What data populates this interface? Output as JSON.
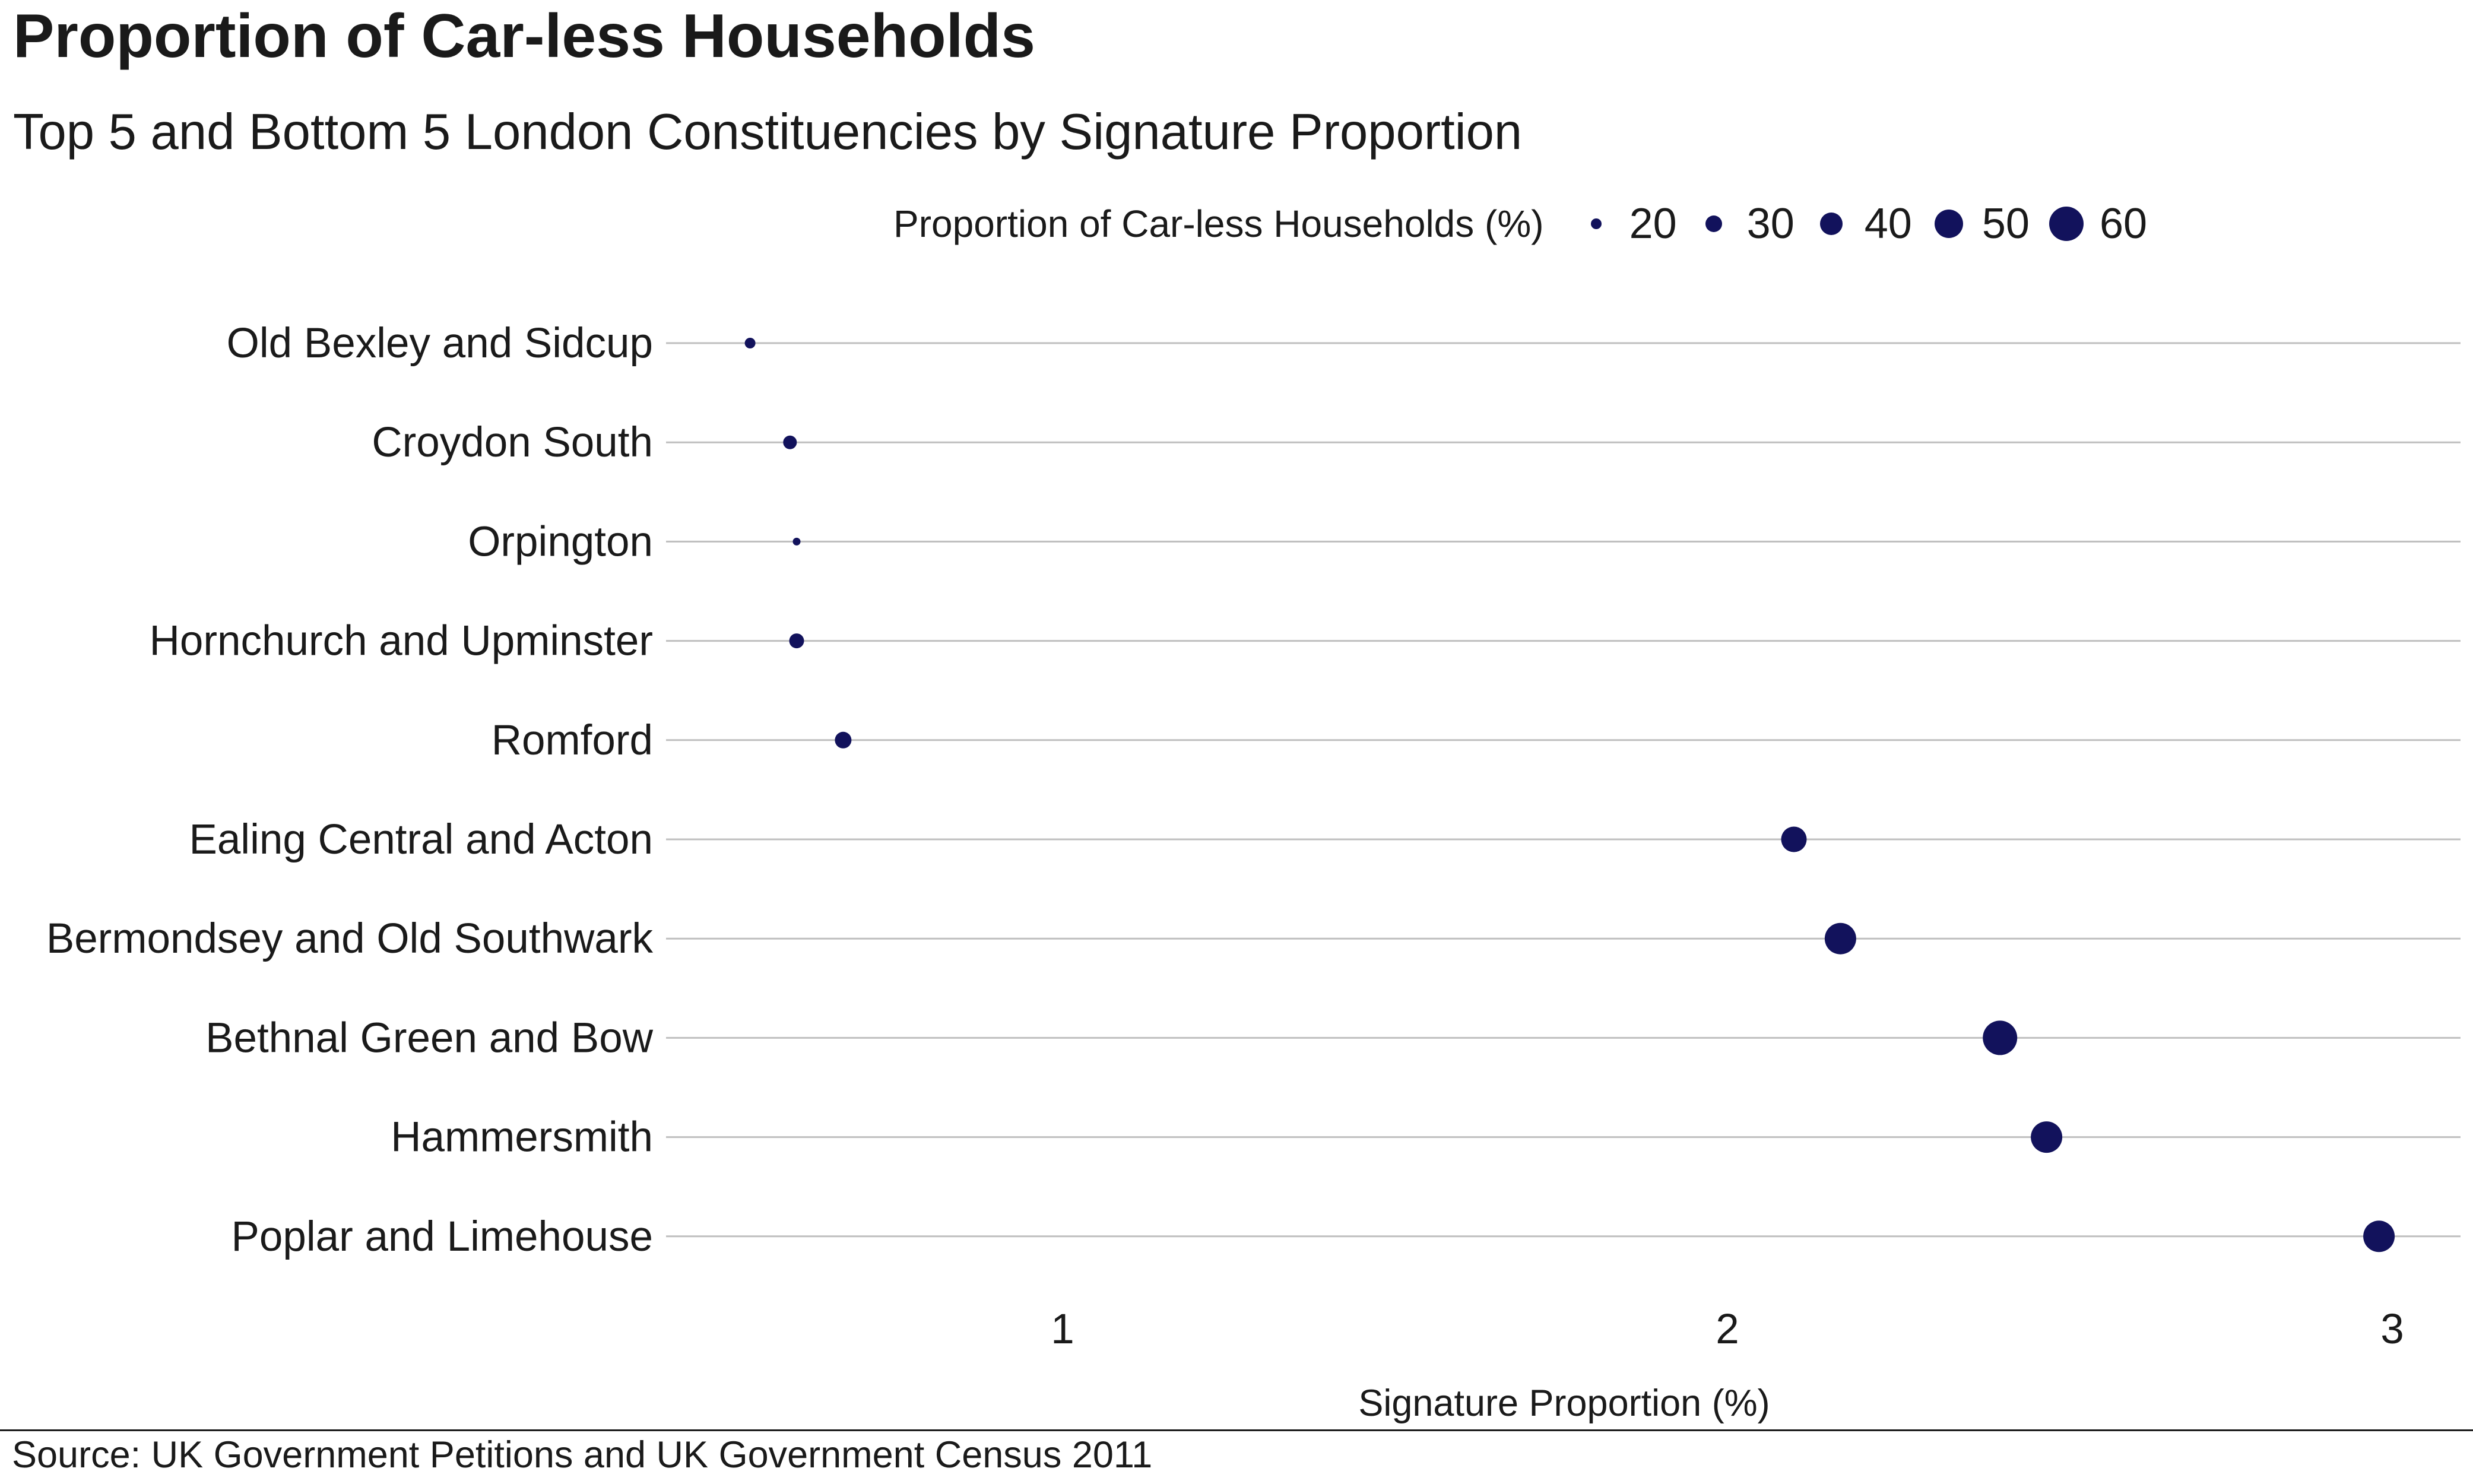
{
  "title": "Proportion of Car-less Households",
  "subtitle": "Top 5 and Bottom 5 London Constituencies by Signature Proportion",
  "caption": "Source: UK Government Petitions and UK Government Census 2011",
  "colors": {
    "point": "#12125c",
    "grid": "#bfbfbf",
    "text": "#1a1a1a"
  },
  "chart_data": {
    "type": "scatter",
    "title": "Proportion of Car-less Households",
    "subtitle": "Top 5 and Bottom 5 London Constituencies by Signature Proportion",
    "xlabel": "Signature Proportion (%)",
    "ylabel": "",
    "xlim": [
      0.41,
      3.1
    ],
    "x_ticks": [
      1,
      2,
      3
    ],
    "grid": "horizontal",
    "legend": {
      "title": "Proportion of Car-less Households (%)",
      "position": "top",
      "values": [
        20,
        30,
        40,
        50,
        60
      ]
    },
    "categories": [
      "Old Bexley and Sidcup",
      "Croydon South",
      "Orpington",
      "Hornchurch and Upminster",
      "Romford",
      "Ealing Central and Acton",
      "Bermondsey and Old Southwark",
      "Bethnal Green and Bow",
      "Hammersmith",
      "Poplar and Limehouse"
    ],
    "x": [
      0.53,
      0.59,
      0.6,
      0.6,
      0.67,
      2.1,
      2.17,
      2.41,
      2.48,
      2.98
    ],
    "size": [
      20,
      25,
      15,
      27,
      30,
      45,
      55,
      60,
      55,
      55
    ]
  }
}
